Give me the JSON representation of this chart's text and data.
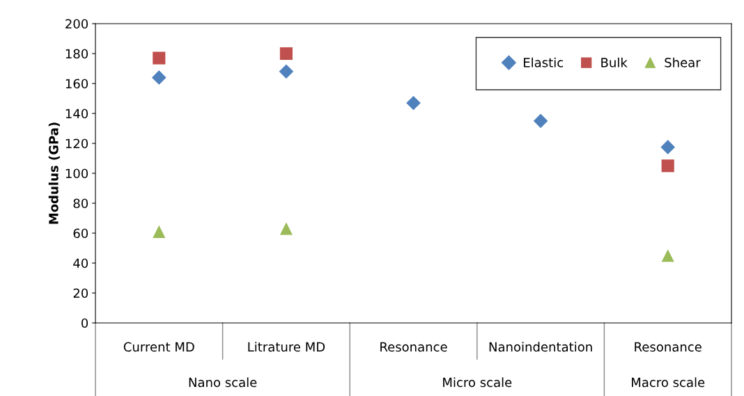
{
  "chart_data": {
    "type": "scatter",
    "ylabel": "Modulus (GPa)",
    "categories": [
      "Current MD",
      "Litrature MD",
      "Resonance",
      "Nanoindentation",
      "Resonance"
    ],
    "series": [
      {
        "name": "Elastic",
        "color": "#4f81bd",
        "marker": "diamond",
        "values": [
          164,
          168,
          147,
          135,
          117.5
        ]
      },
      {
        "name": "Bulk",
        "color": "#c0504d",
        "marker": "square",
        "values": [
          177,
          180,
          null,
          null,
          105
        ]
      },
      {
        "name": "Shear",
        "color": "#9bbb59",
        "marker": "triangle",
        "values": [
          61,
          63,
          null,
          null,
          45
        ]
      }
    ],
    "annotations": [
      "Nano scale",
      "Micro scale",
      "Macro scale"
    ],
    "ylim": [
      0,
      200
    ],
    "yticks": [
      0,
      20,
      40,
      60,
      80,
      100,
      120,
      140,
      160,
      180,
      200
    ],
    "grid": false,
    "legend": "top right"
  }
}
